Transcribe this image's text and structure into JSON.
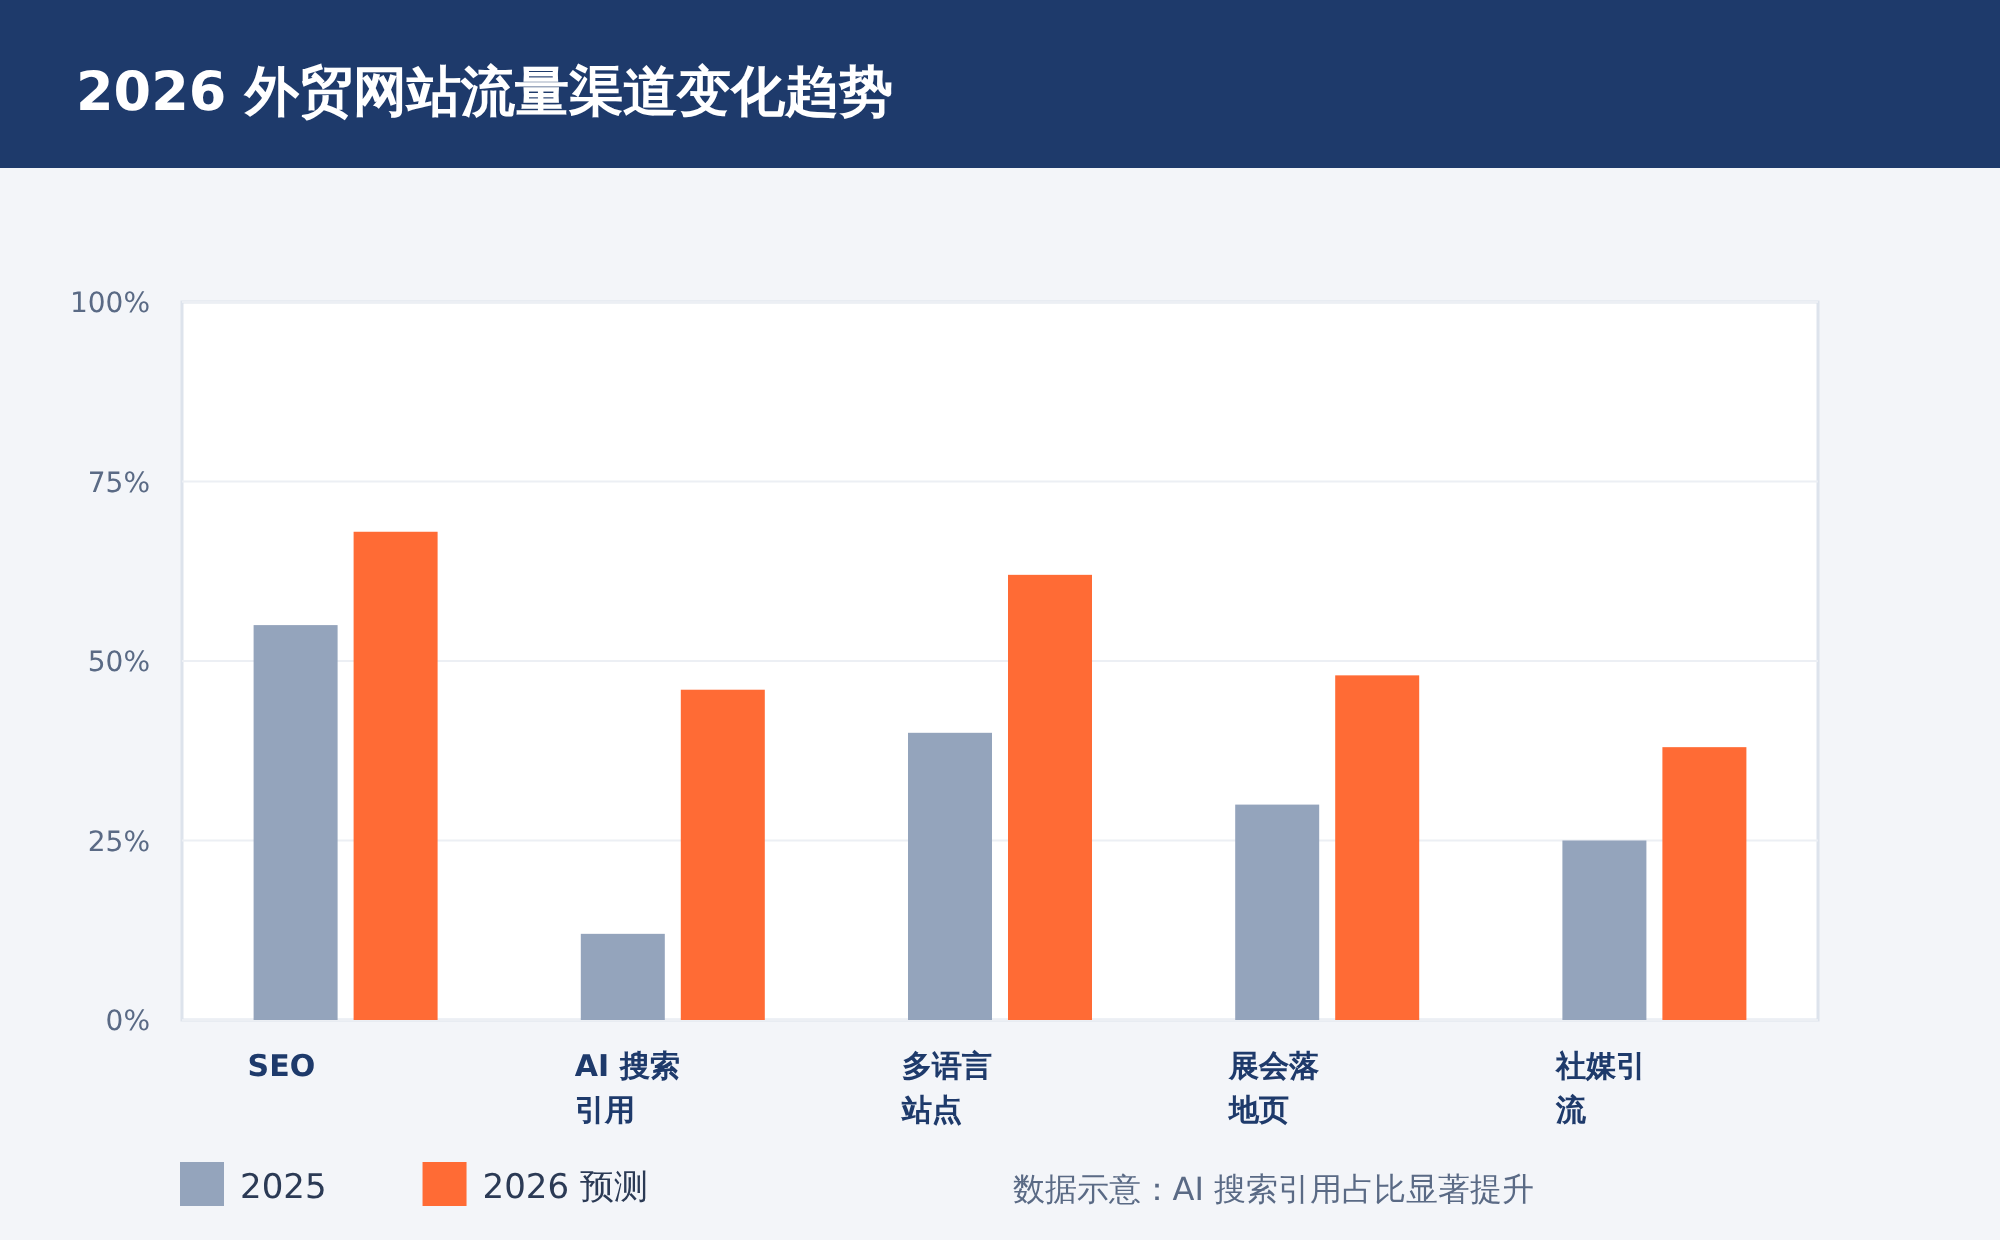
{
  "chart_data": {
    "type": "bar",
    "title": "2026 外贸网站流量渠道变化趋势",
    "categories": [
      "SEO",
      "AI 搜索引用",
      "多语言站点",
      "展会落地页",
      "社媒引流"
    ],
    "series": [
      {
        "name": "2025",
        "color": "#94a4bc",
        "values": [
          55,
          12,
          40,
          30,
          25
        ]
      },
      {
        "name": "2026 预测",
        "color": "#ff6b35",
        "values": [
          68,
          46,
          62,
          48,
          38
        ]
      }
    ],
    "ylim": [
      0,
      100
    ],
    "yticks": [
      {
        "value": 0,
        "label": "0%"
      },
      {
        "value": 25,
        "label": "25%"
      },
      {
        "value": 50,
        "label": "50%"
      },
      {
        "value": 75,
        "label": "75%"
      },
      {
        "value": 100,
        "label": "100%"
      }
    ],
    "grid": "y",
    "legend": "bottom left",
    "annotations": [
      "数据示意：AI 搜索引用占比显著提升"
    ]
  }
}
